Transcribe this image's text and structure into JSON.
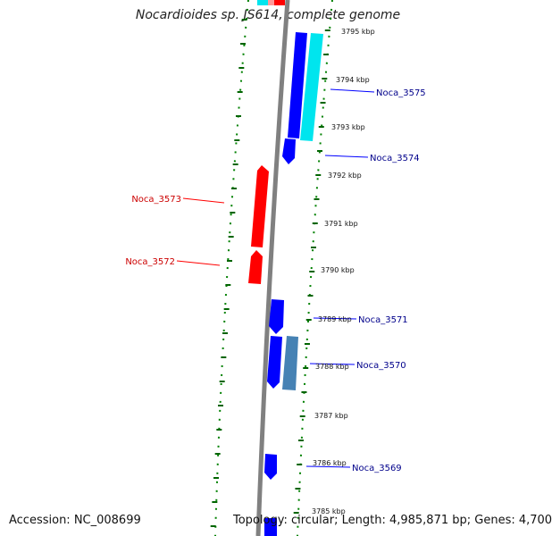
{
  "title": "Nocardioides sp. JS614, complete genome",
  "footer": {
    "accession": "Accession: NC_008699",
    "summary": "Topology: circular; Length: 4,985,871 bp; Genes: 4,700"
  },
  "colors": {
    "forward_gene": "#0000ff",
    "reverse_gene": "#ff0000",
    "forward_other": "#00e5ee",
    "reverse_other": "#ff9999",
    "rna_gene": "#4682b4",
    "backbone": "#808080",
    "gc_dots": "#008000",
    "forward_label": "#00008b",
    "reverse_label": "#cc0000"
  },
  "ticks": [
    {
      "label": "3795 kbp"
    },
    {
      "label": "3794 kbp"
    },
    {
      "label": "3793 kbp"
    },
    {
      "label": "3792 kbp"
    },
    {
      "label": "3791 kbp"
    },
    {
      "label": "3790 kbp"
    },
    {
      "label": "3789 kbp"
    },
    {
      "label": "3788 kbp"
    },
    {
      "label": "3787 kbp"
    },
    {
      "label": "3786 kbp"
    },
    {
      "label": "3785 kbp"
    }
  ],
  "gene_labels": [
    {
      "name": "Noca_3575",
      "strand": "forward"
    },
    {
      "name": "Noca_3574",
      "strand": "forward"
    },
    {
      "name": "Noca_3573",
      "strand": "reverse"
    },
    {
      "name": "Noca_3572",
      "strand": "reverse"
    },
    {
      "name": "Noca_3571",
      "strand": "forward"
    },
    {
      "name": "Noca_3570",
      "strand": "forward"
    },
    {
      "name": "Noca_3569",
      "strand": "forward"
    }
  ]
}
